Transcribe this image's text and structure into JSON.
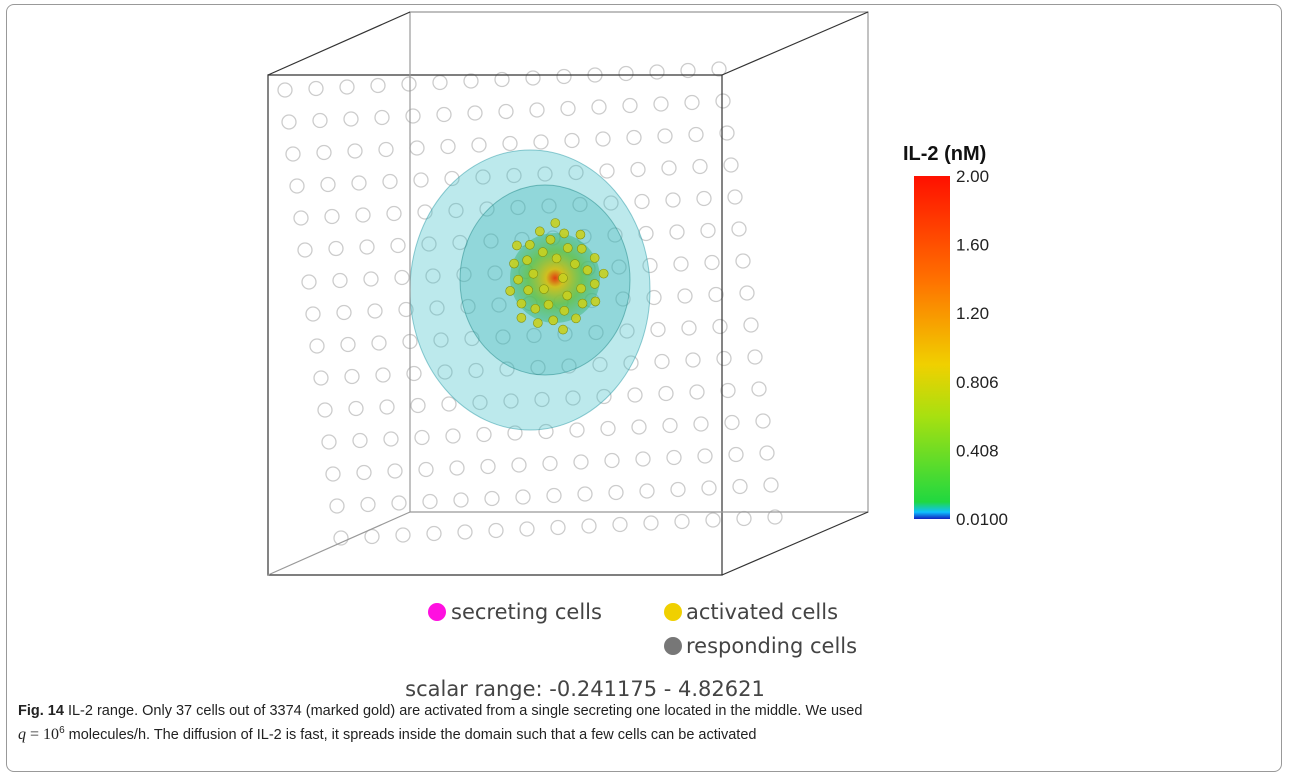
{
  "figure": {
    "colorbar": {
      "title": "IL-2 (nM)",
      "labels": [
        "2.00",
        "1.60",
        "1.20",
        "0.806",
        "0.408",
        "0.0100"
      ]
    },
    "legend": [
      "secreting cells",
      "activated cells",
      "responding cells"
    ],
    "scalar_range": "scalar range: -0.241175 - 4.82621"
  },
  "caption": {
    "label": "Fig. 14",
    "line1": "IL-2 range. Only 37 cells out of 3374 (marked gold) are activated from a single secreting one located in the middle. We used",
    "math_var": "q",
    "math_eq": "= 10",
    "math_exp": "6",
    "line2_rest": "molecules/h. The diffusion of IL-2 is fast, it spreads inside the domain such that a few cells can be activated"
  }
}
